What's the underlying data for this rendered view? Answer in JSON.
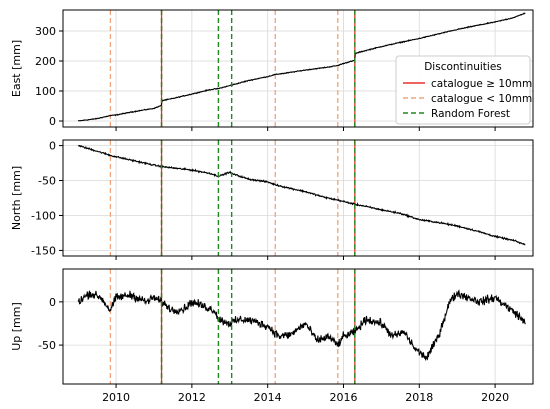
{
  "chart_data": [
    {
      "type": "line",
      "ylabel": "East [mm]",
      "xlim": [
        2008.6,
        2021.0
      ],
      "ylim": [
        -20,
        370
      ],
      "yticks": [
        0,
        100,
        200,
        300
      ],
      "grid": true,
      "series_data": {
        "name": "East",
        "color": "#000000",
        "x": [
          2009.0,
          2009.5,
          2009.85,
          2010.0,
          2010.5,
          2011.0,
          2011.2,
          2011.21,
          2011.5,
          2012.0,
          2012.5,
          2012.7,
          2013.0,
          2013.5,
          2014.0,
          2014.2,
          2014.5,
          2015.0,
          2015.5,
          2015.85,
          2016.0,
          2016.3,
          2016.31,
          2016.5,
          2017.0,
          2017.5,
          2018.0,
          2018.5,
          2019.0,
          2019.5,
          2020.0,
          2020.5,
          2020.8
        ],
        "y": [
          0,
          8,
          18,
          20,
          32,
          42,
          52,
          68,
          75,
          90,
          105,
          108,
          118,
          135,
          148,
          155,
          160,
          170,
          178,
          185,
          192,
          202,
          225,
          232,
          248,
          262,
          275,
          290,
          305,
          318,
          330,
          345,
          360
        ]
      },
      "discontinuities": {
        "catalogue_ge_10mm": [
          2011.2,
          2016.3
        ],
        "catalogue_lt_10mm": [
          2009.85,
          2011.2,
          2014.2,
          2015.85,
          2016.3
        ],
        "random_forest": [
          2011.2,
          2012.7,
          2013.05,
          2016.3
        ]
      },
      "legend": {
        "title": "Discontinuities",
        "position": "right",
        "entries": [
          {
            "label": "catalogue ≥ 10mm",
            "color": "#e8302a",
            "style": "solid"
          },
          {
            "label": "catalogue < 10mm",
            "color": "#f2a37a",
            "style": "dashed"
          },
          {
            "label": "Random Forest",
            "color": "#1f8a1f",
            "style": "dashed"
          }
        ]
      }
    },
    {
      "type": "line",
      "ylabel": "North [mm]",
      "xlim": [
        2008.6,
        2021.0
      ],
      "ylim": [
        -158,
        8
      ],
      "yticks": [
        0,
        -50,
        -100,
        -150
      ],
      "grid": true,
      "series_data": {
        "name": "North",
        "color": "#000000",
        "x": [
          2009.0,
          2009.5,
          2009.85,
          2010.0,
          2010.5,
          2011.0,
          2011.2,
          2011.5,
          2012.0,
          2012.5,
          2012.7,
          2013.0,
          2013.05,
          2013.5,
          2014.0,
          2014.2,
          2014.5,
          2015.0,
          2015.5,
          2015.85,
          2016.0,
          2016.3,
          2016.5,
          2017.0,
          2017.5,
          2018.0,
          2018.5,
          2019.0,
          2019.5,
          2020.0,
          2020.5,
          2020.8
        ],
        "y": [
          0,
          -8,
          -14,
          -16,
          -22,
          -28,
          -30,
          -32,
          -35,
          -40,
          -44,
          -38,
          -40,
          -48,
          -52,
          -56,
          -60,
          -66,
          -74,
          -78,
          -80,
          -84,
          -86,
          -92,
          -97,
          -106,
          -110,
          -115,
          -122,
          -130,
          -136,
          -142
        ]
      }
    },
    {
      "type": "line",
      "ylabel": "Up [mm]",
      "xlim": [
        2008.6,
        2021.0
      ],
      "ylim": [
        -95,
        38
      ],
      "yticks": [
        0,
        -50
      ],
      "grid": true,
      "series_data": {
        "name": "Up",
        "color": "#000000",
        "x": [
          2009.0,
          2009.3,
          2009.6,
          2009.85,
          2010.0,
          2010.4,
          2010.8,
          2011.0,
          2011.2,
          2011.5,
          2011.8,
          2012.0,
          2012.3,
          2012.6,
          2012.7,
          2013.0,
          2013.3,
          2013.6,
          2014.0,
          2014.3,
          2014.6,
          2015.0,
          2015.3,
          2015.6,
          2015.85,
          2016.0,
          2016.3,
          2016.6,
          2017.0,
          2017.3,
          2017.6,
          2017.9,
          2018.2,
          2018.5,
          2018.8,
          2019.0,
          2019.3,
          2019.6,
          2020.0,
          2020.3,
          2020.6,
          2020.8
        ],
        "y": [
          0,
          10,
          5,
          -10,
          5,
          8,
          0,
          5,
          0,
          -10,
          -8,
          0,
          -5,
          -10,
          -20,
          -25,
          -20,
          -22,
          -28,
          -40,
          -38,
          -25,
          -45,
          -40,
          -50,
          -40,
          -35,
          -20,
          -25,
          -40,
          -35,
          -55,
          -65,
          -40,
          0,
          10,
          5,
          0,
          5,
          -5,
          -15,
          -25
        ]
      }
    }
  ],
  "xaxis": {
    "ticks": [
      2010,
      2012,
      2014,
      2016,
      2018,
      2020
    ],
    "tick_labels": [
      "2010",
      "2012",
      "2014",
      "2016",
      "2018",
      "2020"
    ]
  }
}
